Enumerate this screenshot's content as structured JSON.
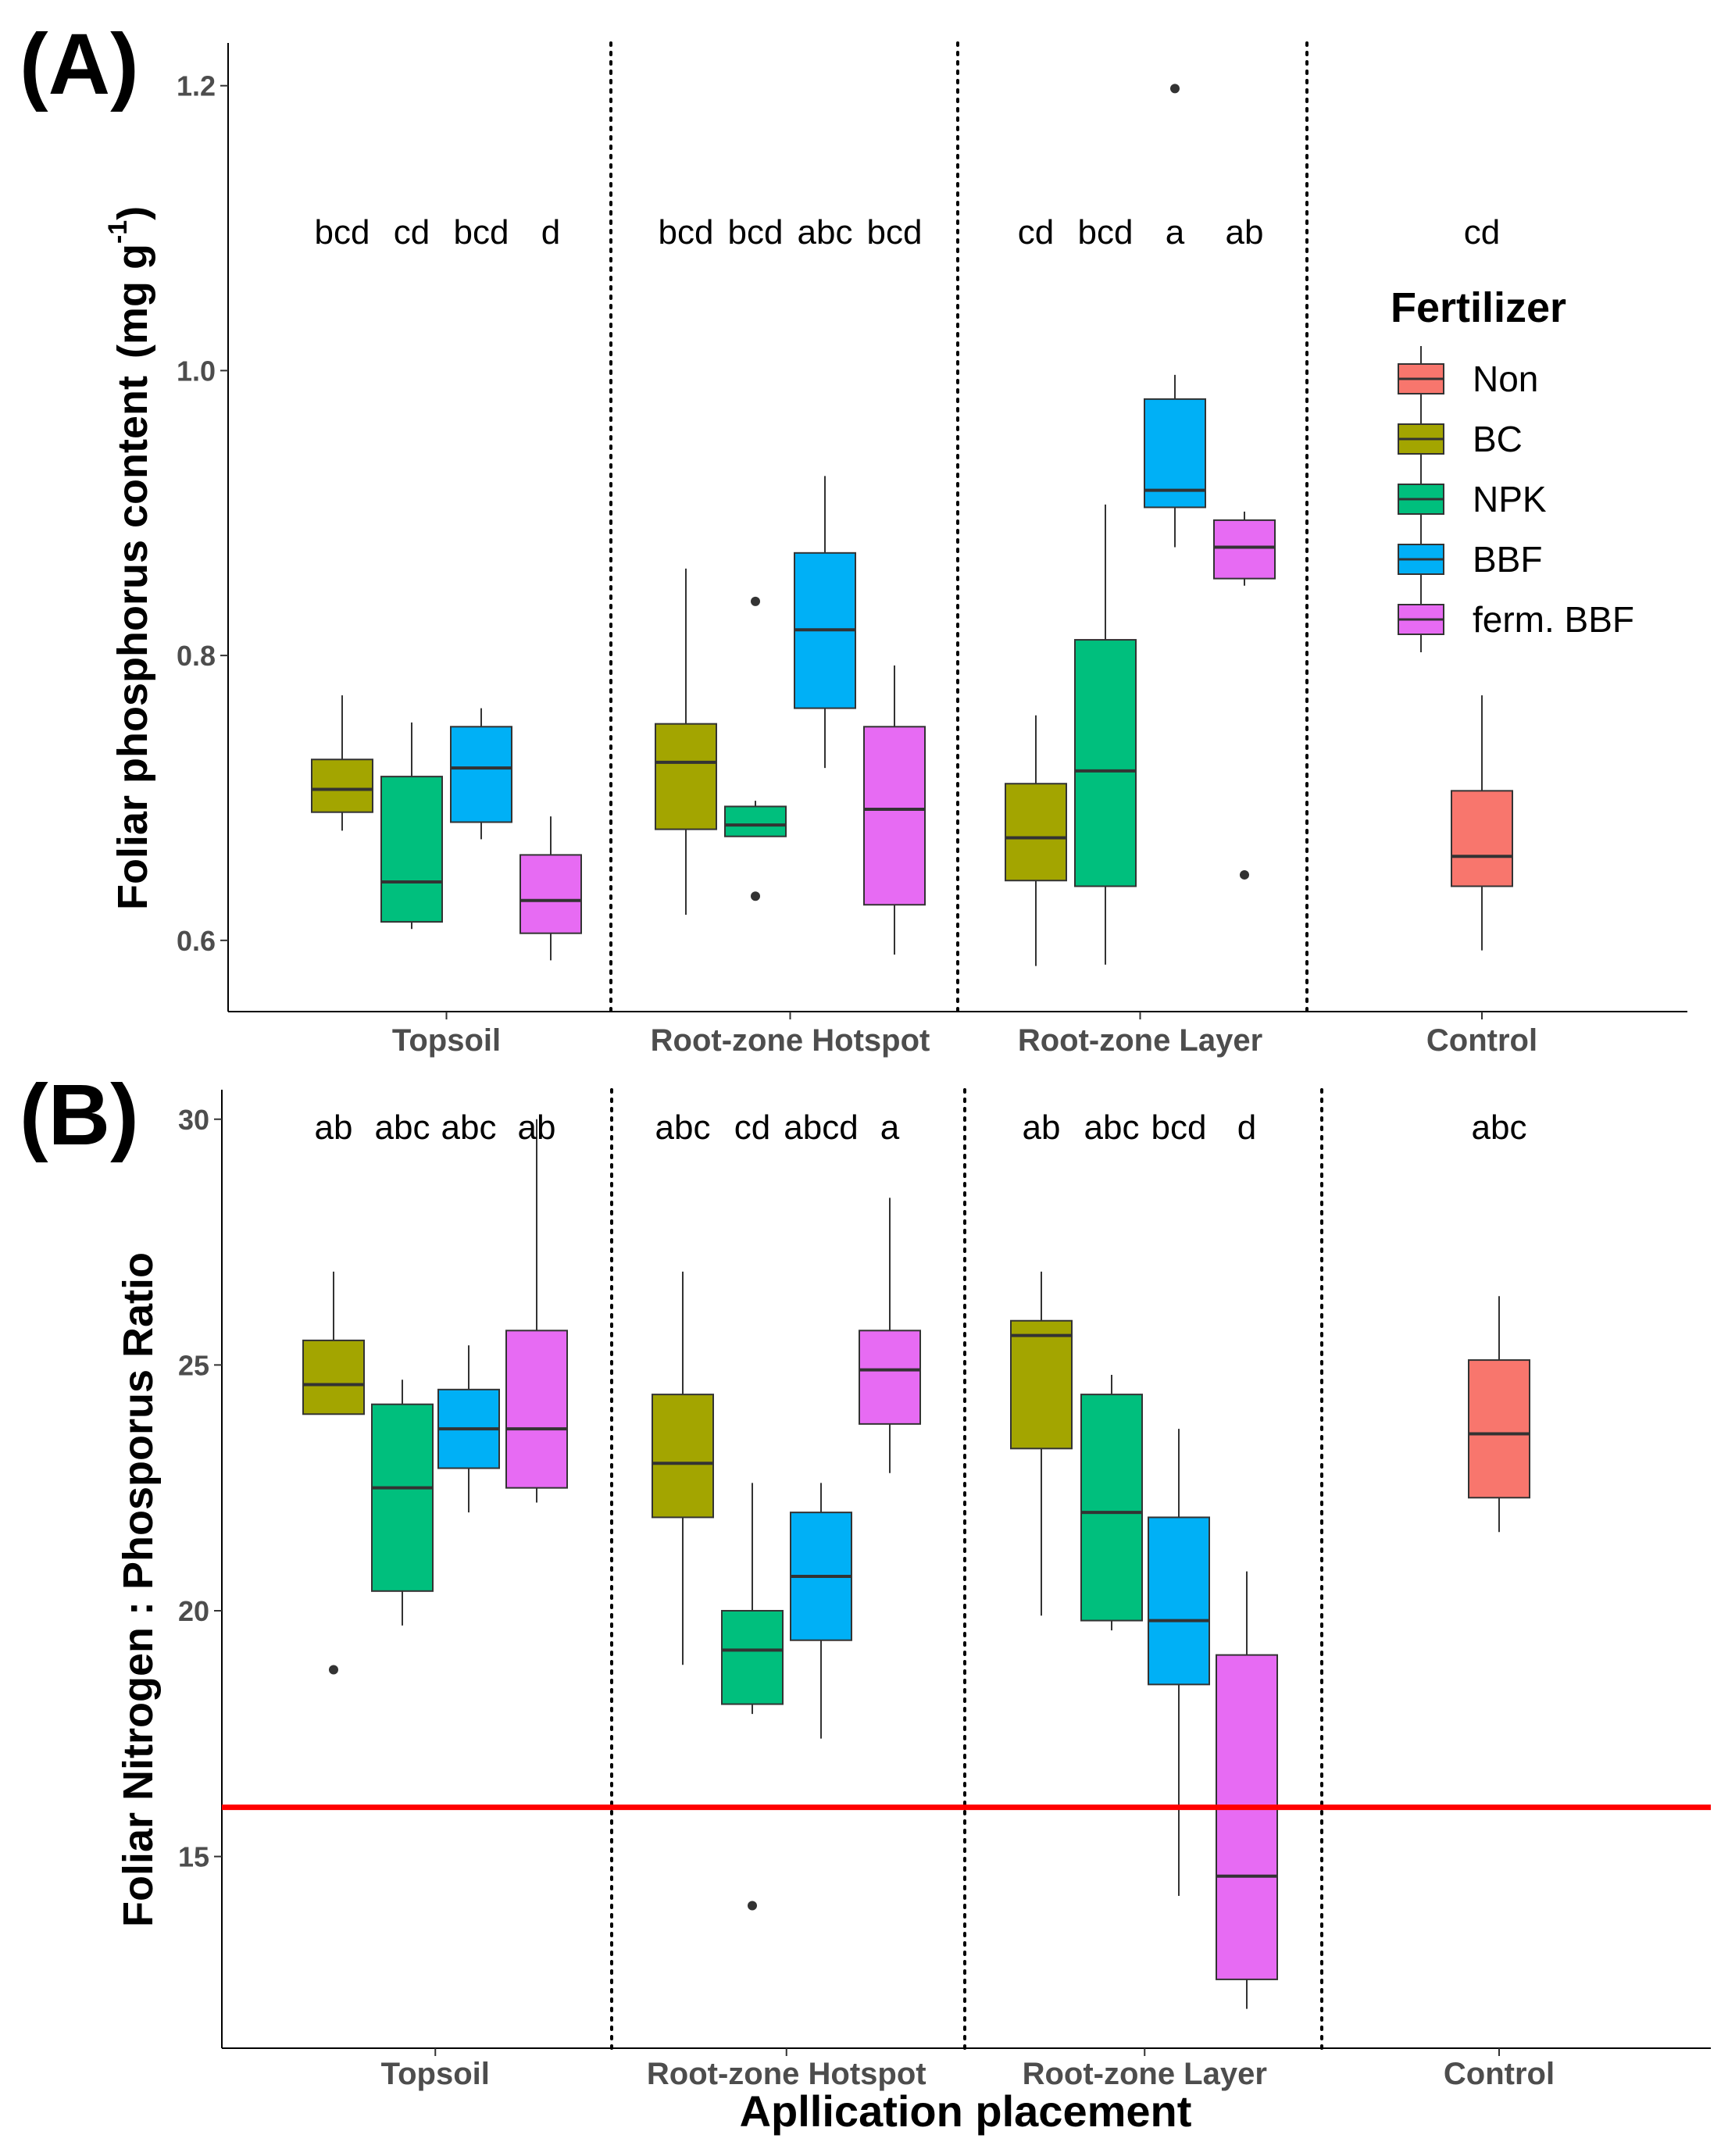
{
  "figure": {
    "xlabel": "Apllication placement",
    "colors": {
      "Non": "#F8766D",
      "BC": "#A3A500",
      "NPK": "#00BF7D",
      "BBF": "#00B0F6",
      "ferm. BBF": "#E76BF3",
      "threshold": "#FF0000"
    },
    "legend": {
      "title": "Fertilizer",
      "items": [
        "Non",
        "BC",
        "NPK",
        "BBF",
        "ferm. BBF"
      ]
    }
  },
  "chart_data": [
    {
      "type": "boxplot",
      "panel_label": "(A)",
      "ylabel": "Foliar phosphorus content",
      "ylabel_unit_pre": "(mg g",
      "ylabel_unit_exp": "-1",
      "ylabel_unit_post": ")",
      "ylim": [
        0.55,
        1.23
      ],
      "yticks": [
        0.6,
        0.8,
        1.0,
        1.2
      ],
      "ytick_labels": [
        "0.6",
        "0.8",
        "1.0",
        "1.2"
      ],
      "groups": [
        {
          "name": "Topsoil",
          "boxes": [
            {
              "fertilizer": "BC",
              "letter": "bcd",
              "whisker_low": 0.677,
              "q1": 0.69,
              "median": 0.706,
              "q3": 0.727,
              "whisker_high": 0.772,
              "outliers": []
            },
            {
              "fertilizer": "NPK",
              "letter": "cd",
              "whisker_low": 0.608,
              "q1": 0.613,
              "median": 0.641,
              "q3": 0.715,
              "whisker_high": 0.753,
              "outliers": []
            },
            {
              "fertilizer": "BBF",
              "letter": "bcd",
              "whisker_low": 0.671,
              "q1": 0.683,
              "median": 0.721,
              "q3": 0.75,
              "whisker_high": 0.763,
              "outliers": []
            },
            {
              "fertilizer": "ferm. BBF",
              "letter": "d",
              "whisker_low": 0.586,
              "q1": 0.605,
              "median": 0.628,
              "q3": 0.66,
              "whisker_high": 0.687,
              "outliers": []
            }
          ]
        },
        {
          "name": "Root-zone Hotspot",
          "boxes": [
            {
              "fertilizer": "BC",
              "letter": "bcd",
              "whisker_low": 0.618,
              "q1": 0.678,
              "median": 0.725,
              "q3": 0.752,
              "whisker_high": 0.861,
              "outliers": []
            },
            {
              "fertilizer": "NPK",
              "letter": "bcd",
              "whisker_low": 0.673,
              "q1": 0.673,
              "median": 0.681,
              "q3": 0.694,
              "whisker_high": 0.698,
              "outliers": [
                0.838,
                0.631
              ]
            },
            {
              "fertilizer": "BBF",
              "letter": "abc",
              "whisker_low": 0.721,
              "q1": 0.763,
              "median": 0.818,
              "q3": 0.872,
              "whisker_high": 0.926,
              "outliers": []
            },
            {
              "fertilizer": "ferm. BBF",
              "letter": "bcd",
              "whisker_low": 0.59,
              "q1": 0.625,
              "median": 0.692,
              "q3": 0.75,
              "whisker_high": 0.793,
              "outliers": []
            }
          ]
        },
        {
          "name": "Root-zone Layer",
          "boxes": [
            {
              "fertilizer": "BC",
              "letter": "cd",
              "whisker_low": 0.582,
              "q1": 0.642,
              "median": 0.672,
              "q3": 0.71,
              "whisker_high": 0.758,
              "outliers": []
            },
            {
              "fertilizer": "NPK",
              "letter": "bcd",
              "whisker_low": 0.583,
              "q1": 0.638,
              "median": 0.719,
              "q3": 0.811,
              "whisker_high": 0.906,
              "outliers": []
            },
            {
              "fertilizer": "BBF",
              "letter": "a",
              "whisker_low": 0.876,
              "q1": 0.904,
              "median": 0.916,
              "q3": 0.98,
              "whisker_high": 0.997,
              "outliers": [
                1.198
              ]
            },
            {
              "fertilizer": "ferm. BBF",
              "letter": "ab",
              "whisker_low": 0.849,
              "q1": 0.854,
              "median": 0.876,
              "q3": 0.895,
              "whisker_high": 0.901,
              "outliers": [
                0.646
              ]
            }
          ]
        },
        {
          "name": "Control",
          "boxes": [
            {
              "fertilizer": "Non",
              "letter": "cd",
              "whisker_low": 0.593,
              "q1": 0.638,
              "median": 0.659,
              "q3": 0.705,
              "whisker_high": 0.772,
              "outliers": []
            }
          ]
        }
      ]
    },
    {
      "type": "boxplot",
      "panel_label": "(B)",
      "ylabel": "Foliar Nitrogen : Phosporus Ratio",
      "ylim": [
        11.1,
        30.6
      ],
      "yticks": [
        15,
        20,
        25,
        30
      ],
      "ytick_labels": [
        "15",
        "20",
        "25",
        "30"
      ],
      "hline": 16,
      "groups": [
        {
          "name": "Topsoil",
          "boxes": [
            {
              "fertilizer": "BC",
              "letter": "ab",
              "whisker_low": 24.0,
              "q1": 24.0,
              "median": 24.6,
              "q3": 25.5,
              "whisker_high": 26.9,
              "outliers": [
                18.8
              ]
            },
            {
              "fertilizer": "NPK",
              "letter": "abc",
              "whisker_low": 19.7,
              "q1": 20.4,
              "median": 22.5,
              "q3": 24.2,
              "whisker_high": 24.7,
              "outliers": []
            },
            {
              "fertilizer": "BBF",
              "letter": "abc",
              "whisker_low": 22.0,
              "q1": 22.9,
              "median": 23.7,
              "q3": 24.5,
              "whisker_high": 25.4,
              "outliers": []
            },
            {
              "fertilizer": "ferm. BBF",
              "letter": "ab",
              "whisker_low": 22.2,
              "q1": 22.5,
              "median": 23.7,
              "q3": 25.7,
              "whisker_high": 30.0,
              "outliers": []
            }
          ]
        },
        {
          "name": "Root-zone Hotspot",
          "boxes": [
            {
              "fertilizer": "BC",
              "letter": "abc",
              "whisker_low": 18.9,
              "q1": 21.9,
              "median": 23.0,
              "q3": 24.4,
              "whisker_high": 26.9,
              "outliers": []
            },
            {
              "fertilizer": "NPK",
              "letter": "cd",
              "whisker_low": 17.9,
              "q1": 18.1,
              "median": 19.2,
              "q3": 20.0,
              "whisker_high": 22.6,
              "outliers": [
                14.0
              ]
            },
            {
              "fertilizer": "BBF",
              "letter": "abcd",
              "whisker_low": 17.4,
              "q1": 19.4,
              "median": 20.7,
              "q3": 22.0,
              "whisker_high": 22.6,
              "outliers": []
            },
            {
              "fertilizer": "ferm. BBF",
              "letter": "a",
              "whisker_low": 22.8,
              "q1": 23.8,
              "median": 24.9,
              "q3": 25.7,
              "whisker_high": 28.4,
              "outliers": []
            }
          ]
        },
        {
          "name": "Root-zone Layer",
          "boxes": [
            {
              "fertilizer": "BC",
              "letter": "ab",
              "whisker_low": 19.9,
              "q1": 23.3,
              "median": 25.6,
              "q3": 25.9,
              "whisker_high": 26.9,
              "outliers": []
            },
            {
              "fertilizer": "NPK",
              "letter": "abc",
              "whisker_low": 19.6,
              "q1": 19.8,
              "median": 22.0,
              "q3": 24.4,
              "whisker_high": 24.8,
              "outliers": []
            },
            {
              "fertilizer": "BBF",
              "letter": "bcd",
              "whisker_low": 14.2,
              "q1": 18.5,
              "median": 19.8,
              "q3": 21.9,
              "whisker_high": 23.7,
              "outliers": []
            },
            {
              "fertilizer": "ferm. BBF",
              "letter": "d",
              "whisker_low": 11.9,
              "q1": 12.5,
              "median": 14.6,
              "q3": 19.1,
              "whisker_high": 20.8,
              "outliers": []
            }
          ]
        },
        {
          "name": "Control",
          "boxes": [
            {
              "fertilizer": "Non",
              "letter": "abc",
              "whisker_low": 21.6,
              "q1": 22.3,
              "median": 23.6,
              "q3": 25.1,
              "whisker_high": 26.4,
              "outliers": []
            }
          ]
        }
      ]
    }
  ]
}
